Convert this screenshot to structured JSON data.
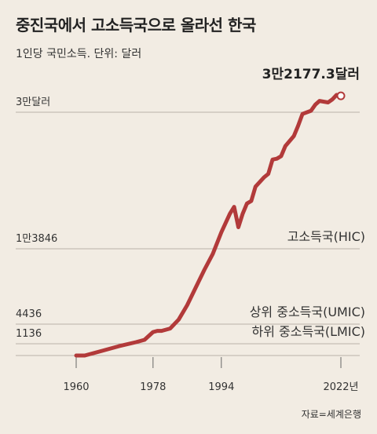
{
  "header": {
    "title": "중진국에서 고소득국으로 올라선 한국",
    "subtitle": "1인당 국민소득. 단위: 달러",
    "source": "자료=세계은행"
  },
  "chart_data": {
    "type": "line",
    "title": "중진국에서 고소득국으로 올라선 한국",
    "subtitle": "1인당 국민소득. 단위: 달러",
    "xlabel": "",
    "ylabel": "",
    "x_ticks": [
      "1960",
      "1978",
      "1994",
      "2022년"
    ],
    "x_tick_values": [
      1960,
      1978,
      1994,
      2022
    ],
    "y_ticks": [
      {
        "label": "3만달러",
        "value": 30000
      },
      {
        "label": "1만3846",
        "value": 13846
      },
      {
        "label": "4436",
        "value": 4436
      },
      {
        "label": "1136",
        "value": 1136
      }
    ],
    "bands": [
      {
        "name": "고소득국(HIC)",
        "threshold": 13846
      },
      {
        "name": "상위 중소득국(UMIC)",
        "threshold": 4436
      },
      {
        "name": "하위 중소득국(LMIC)",
        "threshold": 1136
      }
    ],
    "series": [
      {
        "name": "",
        "color": "#b23a3a",
        "points": [
          [
            1960,
            0
          ],
          [
            1962,
            0
          ],
          [
            1966,
            450
          ],
          [
            1970,
            900
          ],
          [
            1974,
            1400
          ],
          [
            1976,
            1800
          ],
          [
            1978,
            3100
          ],
          [
            1979,
            3300
          ],
          [
            1980,
            3300
          ],
          [
            1982,
            3700
          ],
          [
            1984,
            5000
          ],
          [
            1986,
            6800
          ],
          [
            1988,
            9000
          ],
          [
            1990,
            11200
          ],
          [
            1992,
            13200
          ],
          [
            1994,
            15800
          ],
          [
            1996,
            18000
          ],
          [
            1997,
            18800
          ],
          [
            1998,
            16400
          ],
          [
            1999,
            18000
          ],
          [
            2000,
            19200
          ],
          [
            2001,
            19500
          ],
          [
            2002,
            21200
          ],
          [
            2004,
            22300
          ],
          [
            2005,
            22700
          ],
          [
            2006,
            24400
          ],
          [
            2007,
            24500
          ],
          [
            2008,
            24800
          ],
          [
            2009,
            26000
          ],
          [
            2011,
            27200
          ],
          [
            2012,
            28400
          ],
          [
            2013,
            29800
          ],
          [
            2015,
            30200
          ],
          [
            2016,
            31000
          ],
          [
            2017,
            31500
          ],
          [
            2019,
            31300
          ],
          [
            2020,
            31700
          ],
          [
            2021,
            32300
          ],
          [
            2022,
            32177.3
          ]
        ]
      }
    ],
    "annotation": {
      "text": "3만2177.3달러",
      "x": 2022,
      "value": 32177.3
    },
    "grid": true,
    "legend": "none"
  }
}
